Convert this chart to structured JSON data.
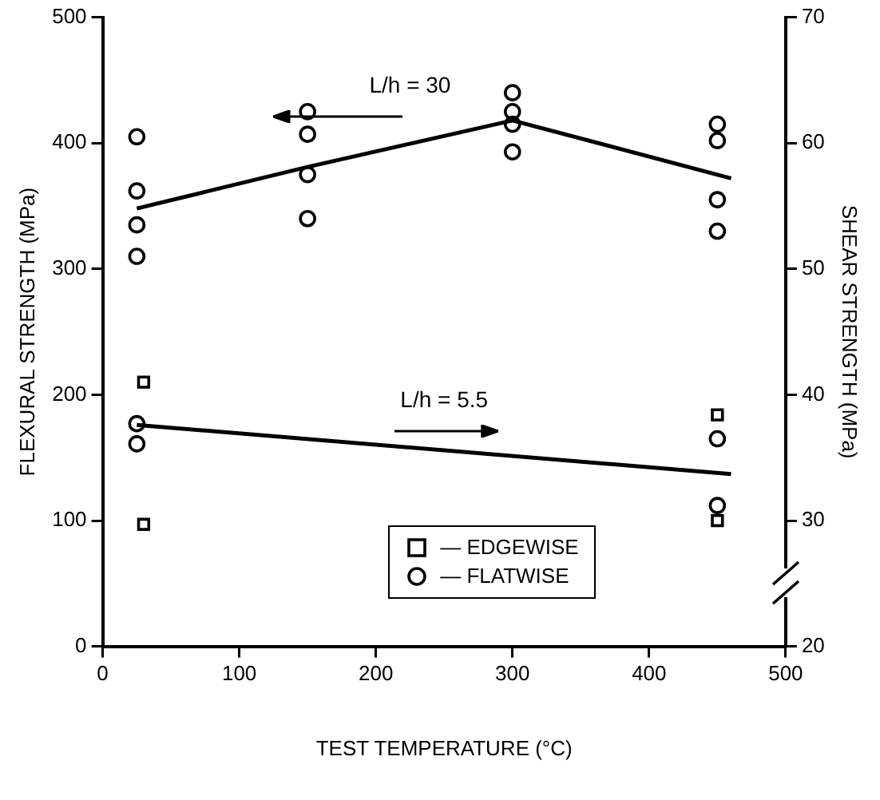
{
  "chart_data": {
    "type": "scatter",
    "xlabel": "TEST TEMPERATURE (°C)",
    "ylabel": "FLEXURAL STRENGTH (MPa)",
    "y2label": "SHEAR STRENGTH (MPa)",
    "xlim": [
      0,
      500
    ],
    "xticks": [
      0,
      100,
      200,
      300,
      400,
      500
    ],
    "ylim": [
      0,
      500
    ],
    "yticks": [
      0,
      100,
      200,
      300,
      400,
      500
    ],
    "y2lim": [
      20,
      70
    ],
    "y2ticks": [
      20,
      30,
      40,
      50,
      60,
      70
    ],
    "grid": false,
    "legend": "bottom",
    "annotations": [
      "L/h = 30",
      "L/h = 5.5"
    ],
    "series": [
      {
        "name": "— FLATWISE",
        "marker": "circle",
        "color": "#000000",
        "x": [
          25,
          25,
          25,
          25,
          150,
          150,
          150,
          150,
          300,
          300,
          300,
          300,
          450,
          450,
          450,
          450
        ],
        "values": [
          405,
          362,
          335,
          310,
          425,
          407,
          375,
          340,
          440,
          425,
          415,
          393,
          415,
          402,
          355,
          330
        ]
      },
      {
        "marker": "circle",
        "color": "#000000",
        "axis": "y2",
        "x": [
          25,
          25,
          450,
          450
        ],
        "values": [
          37.7,
          36.1,
          36.5,
          31.2
        ]
      },
      {
        "name": "— EDGEWISE",
        "marker": "square",
        "color": "#000000",
        "axis": "y2",
        "x": [
          30,
          30,
          450,
          450
        ],
        "values": [
          41,
          29.7,
          38.4,
          30
        ]
      },
      {
        "type": "line",
        "marker": "none",
        "line_style": "solid",
        "color": "#000000",
        "x": [
          25,
          150,
          300,
          460
        ],
        "values": [
          348,
          381,
          418,
          372
        ]
      },
      {
        "type": "line",
        "marker": "none",
        "line_style": "solid",
        "color": "#000000",
        "axis": "y2",
        "x": [
          25,
          460
        ],
        "values": [
          37.6,
          33.7
        ]
      }
    ]
  }
}
